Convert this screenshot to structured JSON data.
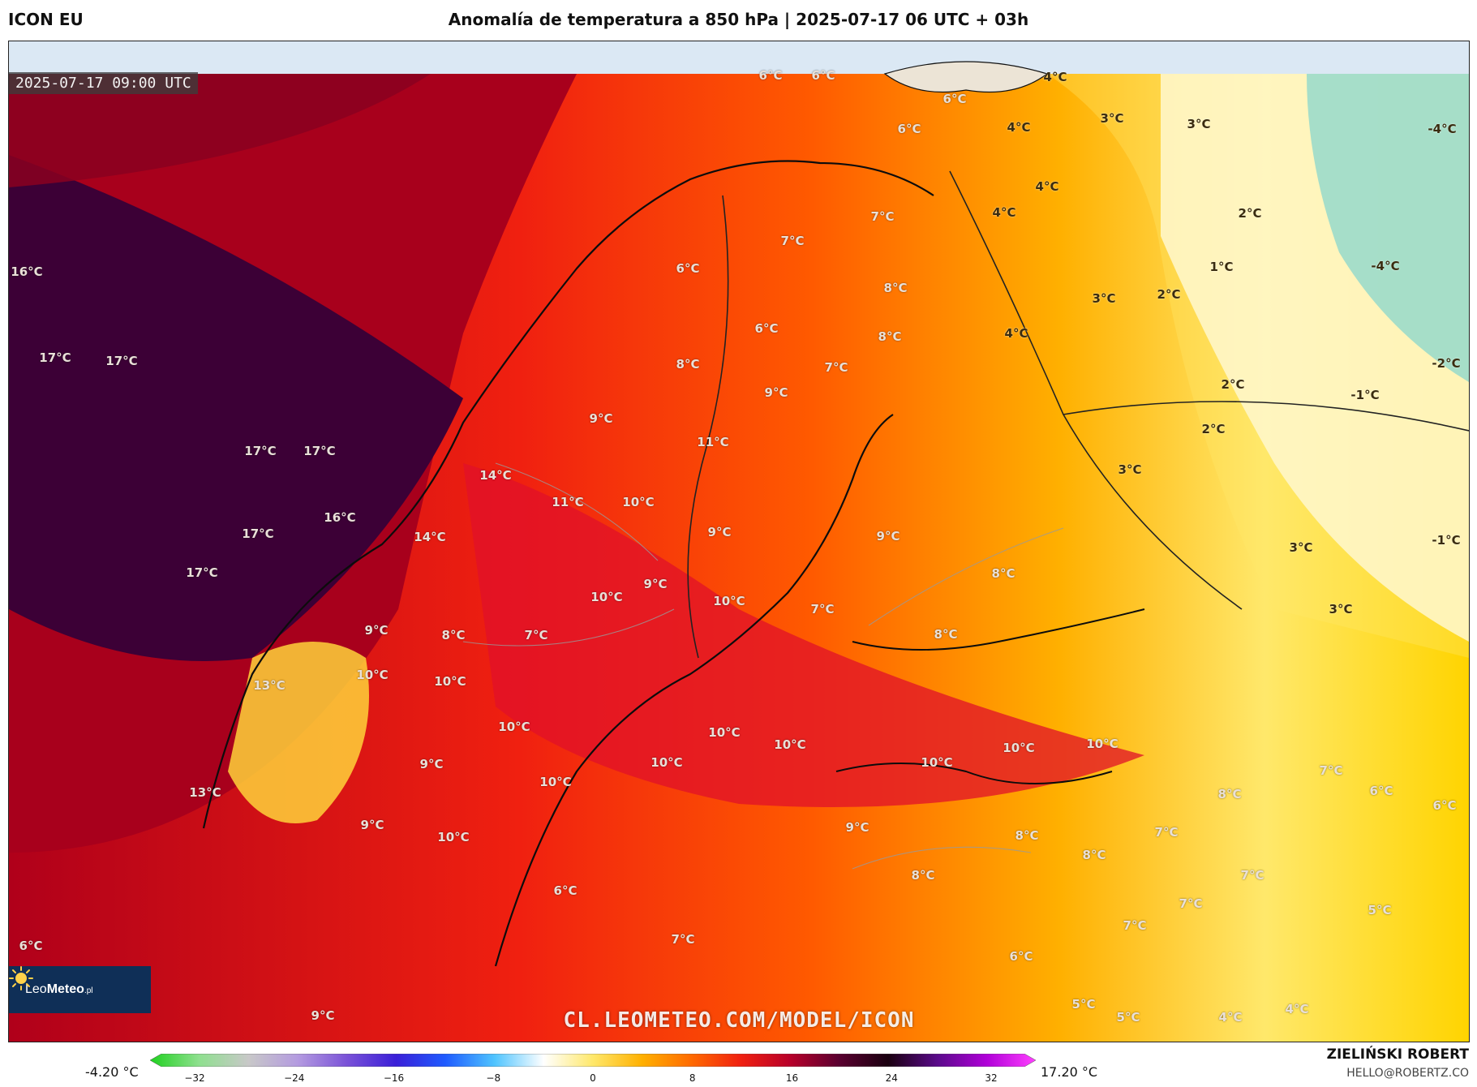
{
  "header": {
    "model": "ICON EU",
    "title": "Anomalía de temperatura a 850 hPa | 2025-07-17 06 UTC + 03h"
  },
  "map": {
    "valid_time": "2025-07-17 09:00 UTC",
    "watermark": "CL.LEOMETEO.COM/MODEL/ICON",
    "labels": [
      {
        "text": "16°C",
        "dark": false
      },
      {
        "text": "17°C",
        "dark": false
      },
      {
        "text": "17°C",
        "dark": false
      },
      {
        "text": "17°C",
        "dark": false
      },
      {
        "text": "17°C",
        "dark": false
      },
      {
        "text": "17°C",
        "dark": false
      },
      {
        "text": "17°C",
        "dark": false
      },
      {
        "text": "16°C",
        "dark": false
      },
      {
        "text": "14°C",
        "dark": false
      },
      {
        "text": "14°C",
        "dark": false
      },
      {
        "text": "13°C",
        "dark": false
      },
      {
        "text": "13°C",
        "dark": false
      },
      {
        "text": "6°C",
        "dark": false
      },
      {
        "text": "6°C",
        "dark": false
      },
      {
        "text": "6°C",
        "dark": false
      },
      {
        "text": "6°C",
        "dark": false
      },
      {
        "text": "7°C",
        "dark": false
      },
      {
        "text": "7°C",
        "dark": false
      },
      {
        "text": "6°C",
        "dark": false
      },
      {
        "text": "8°C",
        "dark": false
      },
      {
        "text": "6°C",
        "dark": false
      },
      {
        "text": "8°C",
        "dark": false
      },
      {
        "text": "8°C",
        "dark": false
      },
      {
        "text": "7°C",
        "dark": false
      },
      {
        "text": "9°C",
        "dark": false
      },
      {
        "text": "9°C",
        "dark": false
      },
      {
        "text": "11°C",
        "dark": false
      },
      {
        "text": "11°C",
        "dark": false
      },
      {
        "text": "10°C",
        "dark": false
      },
      {
        "text": "9°C",
        "dark": false
      },
      {
        "text": "9°C",
        "dark": false
      },
      {
        "text": "9°C",
        "dark": false
      },
      {
        "text": "10°C",
        "dark": false
      },
      {
        "text": "10°C",
        "dark": false
      },
      {
        "text": "7°C",
        "dark": false
      },
      {
        "text": "9°C",
        "dark": false
      },
      {
        "text": "8°C",
        "dark": false
      },
      {
        "text": "7°C",
        "dark": false
      },
      {
        "text": "10°C",
        "dark": false
      },
      {
        "text": "10°C",
        "dark": false
      },
      {
        "text": "10°C",
        "dark": false
      },
      {
        "text": "10°C",
        "dark": false
      },
      {
        "text": "10°C",
        "dark": false
      },
      {
        "text": "10°C",
        "dark": false
      },
      {
        "text": "10°C",
        "dark": false
      },
      {
        "text": "9°C",
        "dark": false
      },
      {
        "text": "10°C",
        "dark": false
      },
      {
        "text": "9°C",
        "dark": false
      },
      {
        "text": "6°C",
        "dark": false
      },
      {
        "text": "7°C",
        "dark": false
      },
      {
        "text": "8°C",
        "dark": false
      },
      {
        "text": "8°C",
        "dark": false
      },
      {
        "text": "10°C",
        "dark": false
      },
      {
        "text": "10°C",
        "dark": false
      },
      {
        "text": "10°C",
        "dark": false
      },
      {
        "text": "9°C",
        "dark": false
      },
      {
        "text": "8°C",
        "dark": false
      },
      {
        "text": "8°C",
        "dark": false
      },
      {
        "text": "8°C",
        "dark": false
      },
      {
        "text": "6°C",
        "dark": false
      },
      {
        "text": "6°C",
        "dark": false
      },
      {
        "text": "9°C",
        "dark": false
      },
      {
        "text": "5°C",
        "dark": false
      },
      {
        "text": "5°C",
        "dark": false
      },
      {
        "text": "4°C",
        "dark": false
      },
      {
        "text": "4°C",
        "dark": false
      },
      {
        "text": "8°C",
        "dark": false
      },
      {
        "text": "7°C",
        "dark": false
      },
      {
        "text": "7°C",
        "dark": false
      },
      {
        "text": "7°C",
        "dark": false
      },
      {
        "text": "7°C",
        "dark": false
      },
      {
        "text": "7°C",
        "dark": false
      },
      {
        "text": "6°C",
        "dark": false
      },
      {
        "text": "6°C",
        "dark": false
      },
      {
        "text": "5°C",
        "dark": false
      },
      {
        "text": "4°C",
        "dark": true
      },
      {
        "text": "4°C",
        "dark": true
      },
      {
        "text": "3°C",
        "dark": true
      },
      {
        "text": "3°C",
        "dark": true
      },
      {
        "text": "4°C",
        "dark": true
      },
      {
        "text": "4°C",
        "dark": true
      },
      {
        "text": "3°C",
        "dark": true
      },
      {
        "text": "2°C",
        "dark": true
      },
      {
        "text": "4°C",
        "dark": true
      },
      {
        "text": "2°C",
        "dark": true
      },
      {
        "text": "1°C",
        "dark": true
      },
      {
        "text": "2°C",
        "dark": true
      },
      {
        "text": "2°C",
        "dark": true
      },
      {
        "text": "3°C",
        "dark": true
      },
      {
        "text": "3°C",
        "dark": true
      },
      {
        "text": "3°C",
        "dark": true
      },
      {
        "text": "-4°C",
        "dark": true
      },
      {
        "text": "-4°C",
        "dark": true
      },
      {
        "text": "-2°C",
        "dark": true
      },
      {
        "text": "-1°C",
        "dark": true
      },
      {
        "text": "-1°C",
        "dark": true
      }
    ]
  },
  "logo": {
    "brand_light": "Leo",
    "brand_bold": "Meteo",
    "suffix": ".pl"
  },
  "legend": {
    "min_label": "-4.20 °C",
    "max_label": "17.20 °C",
    "ticks": [
      "−32",
      "−24",
      "−16",
      "−8",
      "0",
      "8",
      "16",
      "24",
      "32"
    ],
    "colors": [
      "#1fd11f",
      "#8fe08f",
      "#c8c8c8",
      "#b49be0",
      "#7a52d8",
      "#3a1fd8",
      "#1f5bff",
      "#4fc4ff",
      "#ffffff",
      "#ffe86b",
      "#ffb000",
      "#ff6a00",
      "#f02010",
      "#b8002a",
      "#5a0030",
      "#1a0010",
      "#5a0a8a",
      "#b000d8",
      "#ff40ff"
    ]
  },
  "footer": {
    "author": "ZIELIŃSKI ROBERT",
    "email": "HELLO@ROBERTZ.CO"
  }
}
